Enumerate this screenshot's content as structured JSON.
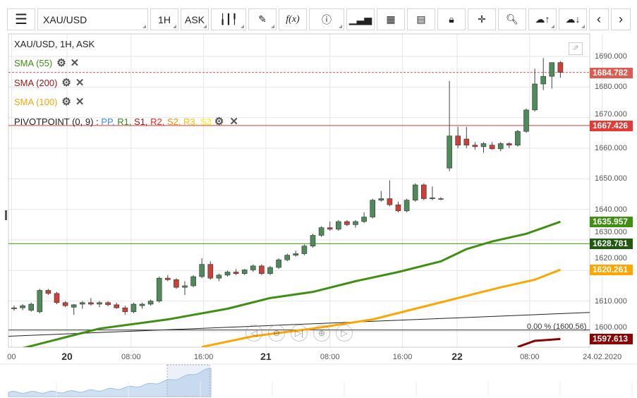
{
  "toolbar": {
    "symbol": "XAU/USD",
    "timeframe": "1H",
    "price_type": "ASK",
    "icons": [
      "menu-icon",
      "candles-icon",
      "pencil-icon",
      "function-icon",
      "info-icon",
      "volume-icon",
      "calendar-icon",
      "report-icon",
      "lock-icon",
      "crosshair-icon",
      "zoom-chart-icon",
      "upload-cloud-icon",
      "download-cloud-icon",
      "chevron-left-icon",
      "chevron-right-icon",
      "gear-icon"
    ],
    "fx_label": "f(x)"
  },
  "legend": {
    "title": "XAU/USD, 1H, ASK",
    "sma55": "SMA (55)",
    "sma200": "SMA (200)",
    "sma100": "SMA (100)",
    "pivot": "PIVOTPOINT (0, 9)",
    "pivot_sep": " : ",
    "pivot_items": [
      {
        "t": "PP",
        "c": "#3b8cf0"
      },
      {
        "t": "R1",
        "c": "#2e8b1a"
      },
      {
        "t": "S1",
        "c": "#a01818"
      },
      {
        "t": "R2",
        "c": "#ff2020"
      },
      {
        "t": "S2",
        "c": "#ff8c00"
      },
      {
        "t": "R3",
        "c": "#ffbf00"
      },
      {
        "t": "S3",
        "c": "#ffee00"
      }
    ]
  },
  "colors": {
    "up": "#4f8a5b",
    "down": "#c9423a",
    "sma55": "#3f8f12",
    "sma100": "#ffa500",
    "sma200": "#8b0000"
  },
  "price_axis": {
    "ticks": [
      "1690.000",
      "1680.000",
      "1670.000",
      "1660.000",
      "1650.000",
      "1640.000",
      "1630.000",
      "1620.000",
      "1610.000",
      "1600.000"
    ],
    "tags": [
      {
        "v": "1684.782",
        "c": "#e05a4e",
        "p": 1684.782
      },
      {
        "v": "1667.426",
        "c": "#e53935",
        "p": 1667.426
      },
      {
        "v": "1635.957",
        "c": "#3f8f12",
        "p": 1635.957
      },
      {
        "v": "1628.781",
        "c": "#1f5a0f",
        "p": 1628.781
      },
      {
        "v": "1620.261",
        "c": "#ffa500",
        "p": 1620.261
      },
      {
        "v": "1597.613",
        "c": "#8b0000",
        "p": 1597.613
      }
    ]
  },
  "fib_label": "0.00 % (1600.56)",
  "time_axis": [
    {
      "t": "00",
      "i": -0.3
    },
    {
      "t": "20",
      "i": 6.2,
      "day": true
    },
    {
      "t": "08:00",
      "i": 13.7
    },
    {
      "t": "16:00",
      "i": 22.2
    },
    {
      "t": "21",
      "i": 29.5,
      "day": true
    },
    {
      "t": "08:00",
      "i": 37
    },
    {
      "t": "16:00",
      "i": 45.5
    },
    {
      "t": "22",
      "i": 51.9,
      "day": true
    },
    {
      "t": "08:00",
      "i": 60.4
    },
    {
      "t": "24.02.2020",
      "i": 68.9
    }
  ],
  "chart_data": {
    "type": "candlestick",
    "ylim": [
      1590,
      1698
    ],
    "candles": [
      [
        1607.5,
        1608.5,
        1606.8,
        1607.8
      ],
      [
        1607.8,
        1609,
        1607,
        1608.5
      ],
      [
        1607,
        1609.5,
        1606.5,
        1609
      ],
      [
        1606.5,
        1614,
        1606,
        1613.5
      ],
      [
        1613.5,
        1614,
        1612,
        1612.5
      ],
      [
        1612.5,
        1613,
        1609,
        1609.5
      ],
      [
        1609.5,
        1610,
        1608,
        1608.5
      ],
      [
        1608,
        1609,
        1605.5,
        1608.8
      ],
      [
        1609,
        1610,
        1607.5,
        1609.5
      ],
      [
        1609.5,
        1611,
        1608.5,
        1609
      ],
      [
        1609,
        1610,
        1608,
        1609.5
      ],
      [
        1609.5,
        1610,
        1608.3,
        1608.8
      ],
      [
        1608.8,
        1609.5,
        1607.5,
        1607.8
      ],
      [
        1607.8,
        1608.5,
        1605.5,
        1606.5
      ],
      [
        1606.5,
        1609.5,
        1606,
        1609
      ],
      [
        1608.5,
        1609.5,
        1607.5,
        1609
      ],
      [
        1609,
        1610.5,
        1608.5,
        1610
      ],
      [
        1610,
        1618,
        1609.5,
        1617.5
      ],
      [
        1617.5,
        1618.5,
        1616.5,
        1617
      ],
      [
        1617,
        1617.5,
        1614,
        1614.5
      ],
      [
        1614.5,
        1616.5,
        1612,
        1615
      ],
      [
        1615,
        1618.5,
        1614.5,
        1618
      ],
      [
        1618,
        1624,
        1617.5,
        1622
      ],
      [
        1622,
        1623,
        1617,
        1617.5
      ],
      [
        1617.5,
        1619,
        1616.5,
        1618.5
      ],
      [
        1618.5,
        1620,
        1618,
        1619.5
      ],
      [
        1619.5,
        1620.5,
        1618.5,
        1619
      ],
      [
        1619,
        1620.5,
        1618.5,
        1620.2
      ],
      [
        1620.2,
        1622,
        1619.5,
        1621.5
      ],
      [
        1621.5,
        1622,
        1618.5,
        1619
      ],
      [
        1619,
        1621.5,
        1618.5,
        1621
      ],
      [
        1621,
        1624,
        1620.5,
        1623.5
      ],
      [
        1623.5,
        1625.5,
        1623,
        1625
      ],
      [
        1625,
        1626.5,
        1624.5,
        1625.5
      ],
      [
        1625.5,
        1628.5,
        1625,
        1628
      ],
      [
        1628,
        1632,
        1627.5,
        1631.5
      ],
      [
        1631.5,
        1634.5,
        1631,
        1634
      ],
      [
        1634,
        1636,
        1633,
        1633.5
      ],
      [
        1633.5,
        1636.5,
        1633,
        1636
      ],
      [
        1636,
        1636.5,
        1634.5,
        1635
      ],
      [
        1635,
        1636.5,
        1634,
        1636
      ],
      [
        1636,
        1639,
        1635.5,
        1637.5
      ],
      [
        1637.5,
        1643.5,
        1637,
        1643
      ],
      [
        1643,
        1646,
        1642.5,
        1643.5
      ],
      [
        1643.5,
        1649.5,
        1641,
        1641.5
      ],
      [
        1641.5,
        1642.5,
        1639,
        1639.5
      ],
      [
        1639.5,
        1643.5,
        1639,
        1643
      ],
      [
        1643,
        1648.5,
        1642.5,
        1648
      ],
      [
        1648,
        1648.5,
        1643,
        1643.5
      ],
      [
        1643.5,
        1647.5,
        1643,
        1643.8
      ],
      [
        1643.5,
        1644,
        1643,
        1643.3
      ],
      [
        1653.5,
        1682,
        1652.5,
        1664
      ],
      [
        1664,
        1667,
        1660,
        1661
      ],
      [
        1663,
        1667,
        1660,
        1661
      ],
      [
        1661,
        1662,
        1659.5,
        1660.5
      ],
      [
        1660.5,
        1662,
        1658.5,
        1661.5
      ],
      [
        1661,
        1662,
        1659.5,
        1659.8
      ],
      [
        1659.8,
        1662,
        1659,
        1661.5
      ],
      [
        1661.5,
        1662,
        1660,
        1661
      ],
      [
        1661,
        1666,
        1660.5,
        1665.5
      ],
      [
        1665.5,
        1673,
        1665,
        1672.5
      ],
      [
        1672.5,
        1686,
        1672,
        1681
      ],
      [
        1681,
        1689.5,
        1679,
        1683.5
      ],
      [
        1683.5,
        1688,
        1679.5,
        1688
      ],
      [
        1688,
        1688.5,
        1683,
        1684.8
      ]
    ],
    "sma55": [
      [
        1,
        1594.6
      ],
      [
        10,
        1601
      ],
      [
        18,
        1604
      ],
      [
        25,
        1607.5
      ],
      [
        30,
        1611
      ],
      [
        35,
        1613
      ],
      [
        40,
        1616.5
      ],
      [
        45,
        1619.5
      ],
      [
        50,
        1623
      ],
      [
        53,
        1627
      ],
      [
        56,
        1629.5
      ],
      [
        60,
        1632
      ],
      [
        64,
        1635.96
      ]
    ],
    "sma100": [
      [
        22,
        1595
      ],
      [
        28,
        1598.5
      ],
      [
        35,
        1601
      ],
      [
        42,
        1604
      ],
      [
        47,
        1607.5
      ],
      [
        52,
        1611
      ],
      [
        57,
        1614.5
      ],
      [
        61,
        1617
      ],
      [
        64,
        1620.26
      ]
    ],
    "sma200": [
      [
        59,
        1595
      ],
      [
        61,
        1597
      ],
      [
        64,
        1597.61
      ]
    ],
    "trendline": [
      [
        -0.7,
        1598.5
      ],
      [
        67.5,
        1606.3
      ]
    ],
    "hlines": [
      {
        "p": 1667.426,
        "c": "#e53935"
      },
      {
        "p": 1628.781,
        "c": "#3f8f12"
      },
      {
        "p": 1600.56,
        "c": "#333"
      }
    ],
    "last_price": 1684.782
  }
}
